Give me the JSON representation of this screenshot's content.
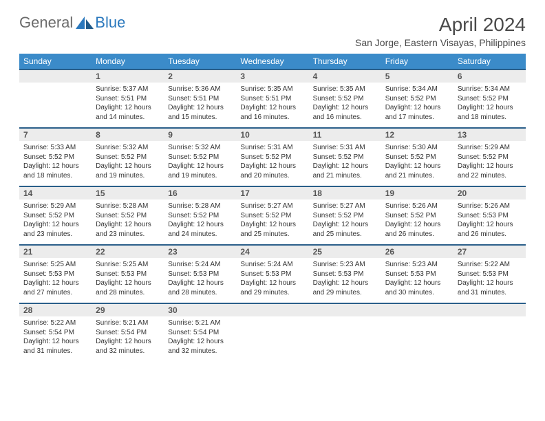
{
  "logo": {
    "general": "General",
    "blue": "Blue"
  },
  "title": "April 2024",
  "location": "San Jorge, Eastern Visayas, Philippines",
  "colors": {
    "header_bg": "#3b8bc9",
    "header_text": "#ffffff",
    "daynum_bg": "#ececec",
    "daynum_border": "#2a5f8a",
    "logo_blue": "#2a78bd",
    "logo_gray": "#6b6b6b"
  },
  "weekdays": [
    "Sunday",
    "Monday",
    "Tuesday",
    "Wednesday",
    "Thursday",
    "Friday",
    "Saturday"
  ],
  "weeks": [
    {
      "nums": [
        "",
        "1",
        "2",
        "3",
        "4",
        "5",
        "6"
      ],
      "cells": [
        {
          "sunrise": "",
          "sunset": "",
          "daylight1": "",
          "daylight2": ""
        },
        {
          "sunrise": "Sunrise: 5:37 AM",
          "sunset": "Sunset: 5:51 PM",
          "daylight1": "Daylight: 12 hours",
          "daylight2": "and 14 minutes."
        },
        {
          "sunrise": "Sunrise: 5:36 AM",
          "sunset": "Sunset: 5:51 PM",
          "daylight1": "Daylight: 12 hours",
          "daylight2": "and 15 minutes."
        },
        {
          "sunrise": "Sunrise: 5:35 AM",
          "sunset": "Sunset: 5:51 PM",
          "daylight1": "Daylight: 12 hours",
          "daylight2": "and 16 minutes."
        },
        {
          "sunrise": "Sunrise: 5:35 AM",
          "sunset": "Sunset: 5:52 PM",
          "daylight1": "Daylight: 12 hours",
          "daylight2": "and 16 minutes."
        },
        {
          "sunrise": "Sunrise: 5:34 AM",
          "sunset": "Sunset: 5:52 PM",
          "daylight1": "Daylight: 12 hours",
          "daylight2": "and 17 minutes."
        },
        {
          "sunrise": "Sunrise: 5:34 AM",
          "sunset": "Sunset: 5:52 PM",
          "daylight1": "Daylight: 12 hours",
          "daylight2": "and 18 minutes."
        }
      ]
    },
    {
      "nums": [
        "7",
        "8",
        "9",
        "10",
        "11",
        "12",
        "13"
      ],
      "cells": [
        {
          "sunrise": "Sunrise: 5:33 AM",
          "sunset": "Sunset: 5:52 PM",
          "daylight1": "Daylight: 12 hours",
          "daylight2": "and 18 minutes."
        },
        {
          "sunrise": "Sunrise: 5:32 AM",
          "sunset": "Sunset: 5:52 PM",
          "daylight1": "Daylight: 12 hours",
          "daylight2": "and 19 minutes."
        },
        {
          "sunrise": "Sunrise: 5:32 AM",
          "sunset": "Sunset: 5:52 PM",
          "daylight1": "Daylight: 12 hours",
          "daylight2": "and 19 minutes."
        },
        {
          "sunrise": "Sunrise: 5:31 AM",
          "sunset": "Sunset: 5:52 PM",
          "daylight1": "Daylight: 12 hours",
          "daylight2": "and 20 minutes."
        },
        {
          "sunrise": "Sunrise: 5:31 AM",
          "sunset": "Sunset: 5:52 PM",
          "daylight1": "Daylight: 12 hours",
          "daylight2": "and 21 minutes."
        },
        {
          "sunrise": "Sunrise: 5:30 AM",
          "sunset": "Sunset: 5:52 PM",
          "daylight1": "Daylight: 12 hours",
          "daylight2": "and 21 minutes."
        },
        {
          "sunrise": "Sunrise: 5:29 AM",
          "sunset": "Sunset: 5:52 PM",
          "daylight1": "Daylight: 12 hours",
          "daylight2": "and 22 minutes."
        }
      ]
    },
    {
      "nums": [
        "14",
        "15",
        "16",
        "17",
        "18",
        "19",
        "20"
      ],
      "cells": [
        {
          "sunrise": "Sunrise: 5:29 AM",
          "sunset": "Sunset: 5:52 PM",
          "daylight1": "Daylight: 12 hours",
          "daylight2": "and 23 minutes."
        },
        {
          "sunrise": "Sunrise: 5:28 AM",
          "sunset": "Sunset: 5:52 PM",
          "daylight1": "Daylight: 12 hours",
          "daylight2": "and 23 minutes."
        },
        {
          "sunrise": "Sunrise: 5:28 AM",
          "sunset": "Sunset: 5:52 PM",
          "daylight1": "Daylight: 12 hours",
          "daylight2": "and 24 minutes."
        },
        {
          "sunrise": "Sunrise: 5:27 AM",
          "sunset": "Sunset: 5:52 PM",
          "daylight1": "Daylight: 12 hours",
          "daylight2": "and 25 minutes."
        },
        {
          "sunrise": "Sunrise: 5:27 AM",
          "sunset": "Sunset: 5:52 PM",
          "daylight1": "Daylight: 12 hours",
          "daylight2": "and 25 minutes."
        },
        {
          "sunrise": "Sunrise: 5:26 AM",
          "sunset": "Sunset: 5:52 PM",
          "daylight1": "Daylight: 12 hours",
          "daylight2": "and 26 minutes."
        },
        {
          "sunrise": "Sunrise: 5:26 AM",
          "sunset": "Sunset: 5:53 PM",
          "daylight1": "Daylight: 12 hours",
          "daylight2": "and 26 minutes."
        }
      ]
    },
    {
      "nums": [
        "21",
        "22",
        "23",
        "24",
        "25",
        "26",
        "27"
      ],
      "cells": [
        {
          "sunrise": "Sunrise: 5:25 AM",
          "sunset": "Sunset: 5:53 PM",
          "daylight1": "Daylight: 12 hours",
          "daylight2": "and 27 minutes."
        },
        {
          "sunrise": "Sunrise: 5:25 AM",
          "sunset": "Sunset: 5:53 PM",
          "daylight1": "Daylight: 12 hours",
          "daylight2": "and 28 minutes."
        },
        {
          "sunrise": "Sunrise: 5:24 AM",
          "sunset": "Sunset: 5:53 PM",
          "daylight1": "Daylight: 12 hours",
          "daylight2": "and 28 minutes."
        },
        {
          "sunrise": "Sunrise: 5:24 AM",
          "sunset": "Sunset: 5:53 PM",
          "daylight1": "Daylight: 12 hours",
          "daylight2": "and 29 minutes."
        },
        {
          "sunrise": "Sunrise: 5:23 AM",
          "sunset": "Sunset: 5:53 PM",
          "daylight1": "Daylight: 12 hours",
          "daylight2": "and 29 minutes."
        },
        {
          "sunrise": "Sunrise: 5:23 AM",
          "sunset": "Sunset: 5:53 PM",
          "daylight1": "Daylight: 12 hours",
          "daylight2": "and 30 minutes."
        },
        {
          "sunrise": "Sunrise: 5:22 AM",
          "sunset": "Sunset: 5:53 PM",
          "daylight1": "Daylight: 12 hours",
          "daylight2": "and 31 minutes."
        }
      ]
    },
    {
      "nums": [
        "28",
        "29",
        "30",
        "",
        "",
        "",
        ""
      ],
      "cells": [
        {
          "sunrise": "Sunrise: 5:22 AM",
          "sunset": "Sunset: 5:54 PM",
          "daylight1": "Daylight: 12 hours",
          "daylight2": "and 31 minutes."
        },
        {
          "sunrise": "Sunrise: 5:21 AM",
          "sunset": "Sunset: 5:54 PM",
          "daylight1": "Daylight: 12 hours",
          "daylight2": "and 32 minutes."
        },
        {
          "sunrise": "Sunrise: 5:21 AM",
          "sunset": "Sunset: 5:54 PM",
          "daylight1": "Daylight: 12 hours",
          "daylight2": "and 32 minutes."
        },
        {
          "sunrise": "",
          "sunset": "",
          "daylight1": "",
          "daylight2": ""
        },
        {
          "sunrise": "",
          "sunset": "",
          "daylight1": "",
          "daylight2": ""
        },
        {
          "sunrise": "",
          "sunset": "",
          "daylight1": "",
          "daylight2": ""
        },
        {
          "sunrise": "",
          "sunset": "",
          "daylight1": "",
          "daylight2": ""
        }
      ]
    }
  ]
}
